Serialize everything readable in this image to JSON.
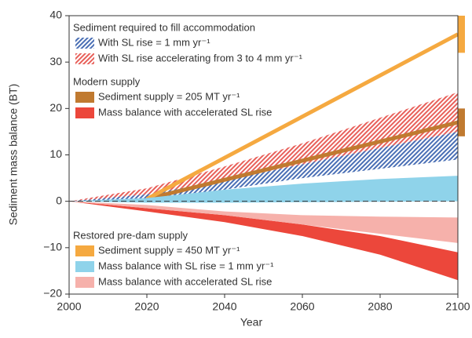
{
  "chart_data": {
    "type": "band",
    "x_label": "Year",
    "y_label": "Sediment mass balance (BT)",
    "xlim": [
      2000,
      2100
    ],
    "xticks": [
      2000,
      2020,
      2040,
      2060,
      2080,
      2100
    ],
    "ylim": [
      -20,
      40
    ],
    "yticks": [
      {
        "value": -20,
        "label": "−20"
      },
      {
        "value": -10,
        "label": "−10"
      },
      0,
      10,
      20,
      30,
      40
    ],
    "baseline": 0,
    "groups": [
      {
        "title": "Sediment required to fill accommodation",
        "series": [
          {
            "name": "With SL rise = 1 mm yr⁻¹",
            "kind": "band",
            "hatch": true,
            "color": "#4a6fb5",
            "x": [
              2000,
              2020,
              2040,
              2060,
              2080,
              2100
            ],
            "lower": [
              0,
              0.3,
              2.5,
              5,
              7,
              9
            ],
            "upper": [
              0,
              1.5,
              4.5,
              8,
              11.5,
              15
            ]
          },
          {
            "name": "With SL rise accelerating from 3 to 4 mm yr⁻¹",
            "kind": "band",
            "hatch": true,
            "color": "#e8605a",
            "x": [
              2000,
              2020,
              2040,
              2060,
              2080,
              2100
            ],
            "lower": [
              0,
              1.5,
              4.5,
              8,
              11.5,
              15
            ],
            "upper": [
              0,
              2.8,
              7.5,
              12.5,
              18,
              23.5
            ]
          }
        ]
      },
      {
        "title": "Modern supply",
        "series": [
          {
            "name": "Sediment supply = 205 MT yr⁻¹",
            "kind": "line",
            "color": "#c07a30",
            "x": [
              2020,
              2100
            ],
            "values": [
              0.5,
              17
            ],
            "end_range": [
              14,
              20
            ]
          },
          {
            "name": "Mass balance with accelerated SL rise",
            "kind": "band",
            "hatch": false,
            "color": "#ec473b",
            "x": [
              2000,
              2020,
              2040,
              2060,
              2080,
              2100
            ],
            "lower": [
              0,
              -2.2,
              -4.5,
              -7.5,
              -11.5,
              -17
            ],
            "upper": [
              0,
              -1.5,
              -3,
              -5,
              -7.5,
              -11
            ]
          }
        ]
      },
      {
        "title": "Restored pre-dam supply",
        "series": [
          {
            "name": "Sediment supply = 450 MT yr⁻¹",
            "kind": "line",
            "color": "#f5a940",
            "x": [
              2020,
              2100
            ],
            "values": [
              0.5,
              36
            ],
            "end_range": [
              32,
              40
            ]
          },
          {
            "name": "Mass balance with SL rise = 1 mm yr⁻¹",
            "kind": "band",
            "hatch": false,
            "color": "#8fd3ea",
            "x": [
              2000,
              2020,
              2040,
              2060,
              2080,
              2100
            ],
            "lower": [
              0,
              -0.3,
              -0.3,
              -0.2,
              -0.1,
              0
            ],
            "upper": [
              0,
              0.7,
              2.5,
              3.8,
              4.8,
              5.5
            ]
          },
          {
            "name": "Mass balance with accelerated SL rise",
            "kind": "band",
            "hatch": false,
            "color": "#f6b1ab",
            "x": [
              2000,
              2020,
              2040,
              2060,
              2080,
              2100
            ],
            "lower": [
              0,
              -1.5,
              -3,
              -5,
              -7,
              -9
            ],
            "upper": [
              0,
              -0.8,
              -2.2,
              -3,
              -3.3,
              -3.5
            ]
          }
        ]
      }
    ]
  }
}
